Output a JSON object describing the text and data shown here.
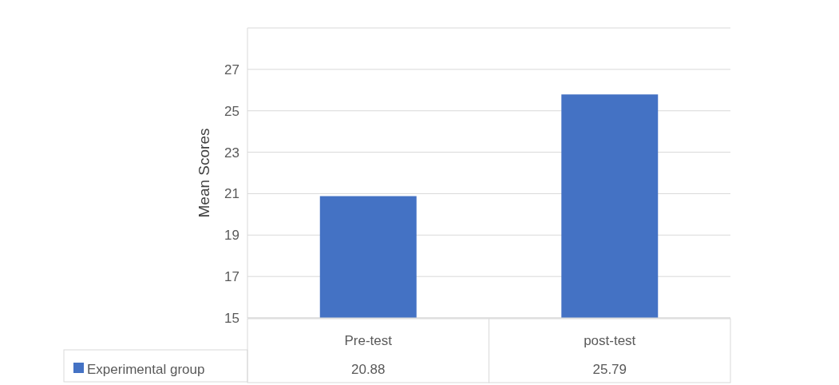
{
  "chart_data": {
    "type": "bar",
    "ylabel": "Mean Scores",
    "categories": [
      "Pre-test",
      "post-test"
    ],
    "series": [
      {
        "name": "Experimental group",
        "color": "#4472c4",
        "values": [
          20.88,
          25.79
        ]
      }
    ],
    "ylim": [
      15,
      29
    ],
    "yticks": [
      15,
      17,
      19,
      21,
      23,
      25,
      27,
      {
        "value": 29,
        "label": null
      }
    ],
    "grid": "y",
    "legend": "bottom",
    "data_labels": true
  }
}
